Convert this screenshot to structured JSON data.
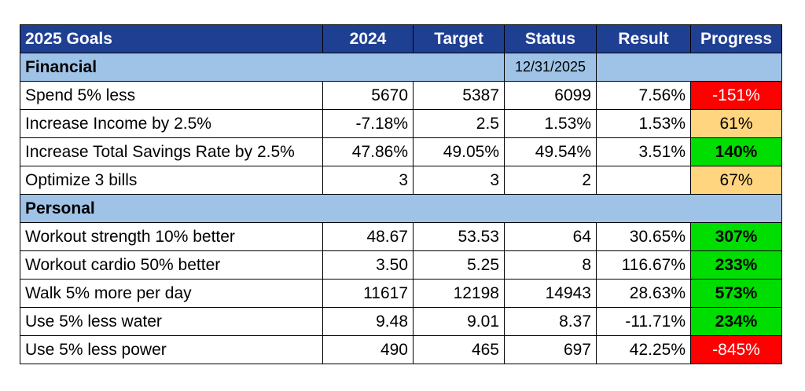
{
  "header": {
    "col_goal": "2025 Goals",
    "col_2024": "2024",
    "col_target": "Target",
    "col_status": "Status",
    "col_result": "Result",
    "col_progress": "Progress"
  },
  "financial": {
    "title": "Financial",
    "date": "12/31/2025",
    "rows": [
      {
        "goal": "Spend 5% less",
        "y2024": "5670",
        "target": "5387",
        "status": "6099",
        "result": "7.56%",
        "progress": "-151%",
        "color": "#ff0000"
      },
      {
        "goal": "Increase Income by 2.5%",
        "y2024": "-7.18%",
        "target": "2.5",
        "status": "1.53%",
        "result": "1.53%",
        "progress": "61%",
        "color": "#ffd57f"
      },
      {
        "goal": "Increase Total Savings Rate by 2.5%",
        "y2024": "47.86%",
        "target": "49.05%",
        "status": "49.54%",
        "result": "3.51%",
        "progress": "140%",
        "color": "#00dd00"
      },
      {
        "goal": "Optimize 3 bills",
        "y2024": "3",
        "target": "3",
        "status": "2",
        "result": "",
        "progress": "67%",
        "color": "#ffd57f"
      }
    ]
  },
  "personal": {
    "title": "Personal",
    "rows": [
      {
        "goal": "Workout strength 10% better",
        "y2024": "48.67",
        "target": "53.53",
        "status": "64",
        "result": "30.65%",
        "progress": "307%",
        "color": "#00dd00"
      },
      {
        "goal": "Workout cardio 50% better",
        "y2024": "3.50",
        "target": "5.25",
        "status": "8",
        "result": "116.67%",
        "progress": "233%",
        "color": "#00dd00"
      },
      {
        "goal": "Walk 5% more per day",
        "y2024": "11617",
        "target": "12198",
        "status": "14943",
        "result": "28.63%",
        "progress": "573%",
        "color": "#00dd00"
      },
      {
        "goal": "Use 5% less water",
        "y2024": "9.48",
        "target": "9.01",
        "status": "8.37",
        "result": "-11.71%",
        "progress": "234%",
        "color": "#00dd00"
      },
      {
        "goal": "Use 5% less power",
        "y2024": "490",
        "target": "465",
        "status": "697",
        "result": "42.25%",
        "progress": "-845%",
        "color": "#ff0000"
      }
    ]
  }
}
